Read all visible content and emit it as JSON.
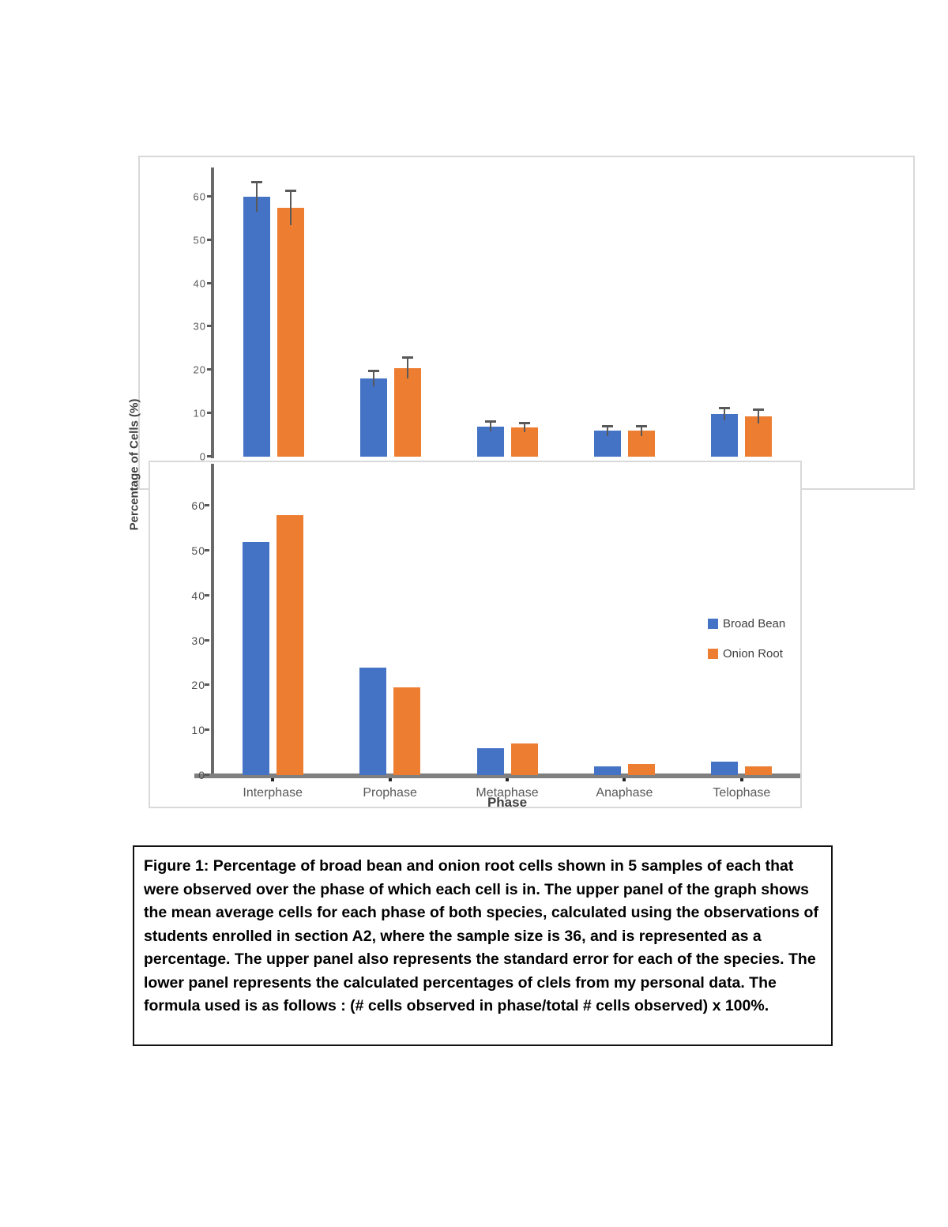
{
  "figure": {
    "y_axis_label": "Percentage of Cells (%)"
  },
  "chart_data": [
    {
      "panel": "upper",
      "type": "bar",
      "title": "",
      "ylabel": "Percentage of Cells (%)",
      "xlabel": "",
      "categories": [
        "Interphase",
        "Prophase",
        "Metaphase",
        "Anaphase",
        "Telophase"
      ],
      "series": [
        {
          "name": "Broad Bean",
          "color": "#4472C4",
          "values": [
            60,
            18,
            7,
            6,
            9.8
          ],
          "errors": [
            3.5,
            1.8,
            1.2,
            1.2,
            1.5
          ]
        },
        {
          "name": "Onion Root",
          "color": "#ED7D31",
          "values": [
            57.5,
            20.5,
            6.8,
            6,
            9.3
          ],
          "errors": [
            4,
            2.5,
            1.1,
            1.2,
            1.7
          ]
        }
      ],
      "y_ticks": [
        0,
        10,
        20,
        30,
        40,
        50,
        60
      ],
      "ymax": 66,
      "ylim": [
        0,
        66
      ],
      "grid": false,
      "error_bars": true,
      "x_axis_line": false,
      "show_x_labels": false,
      "legend": false
    },
    {
      "panel": "lower",
      "type": "bar",
      "title": "",
      "ylabel": "Percentage of Cells (%)",
      "xlabel": "Phase",
      "categories": [
        "Interphase",
        "Prophase",
        "Metaphase",
        "Anaphase",
        "Telophase"
      ],
      "series": [
        {
          "name": "Broad Bean",
          "color": "#4472C4",
          "values": [
            52,
            24,
            6,
            2,
            3
          ]
        },
        {
          "name": "Onion Root",
          "color": "#ED7D31",
          "values": [
            58,
            19.5,
            7,
            2.5,
            2
          ]
        }
      ],
      "y_ticks": [
        0,
        10,
        20,
        30,
        40,
        50,
        60
      ],
      "ymax": 69,
      "ylim": [
        0,
        69
      ],
      "grid": false,
      "error_bars": false,
      "x_axis_line": true,
      "show_x_labels": true,
      "legend": true,
      "legend_position": "right-middle"
    }
  ],
  "caption": {
    "text": "Figure 1: Percentage of broad bean and onion root cells shown in 5 samples of each that were observed over the phase of which each cell is in. The upper panel of the graph shows the mean average cells for each phase of both species, calculated using the observations of students enrolled in section A2, where the sample size is 36, and is represented as a percentage. The upper panel also represents the standard error for each of the species. The lower panel represents the calculated percentages of clels from my personal data. The formula used is as follows : (# cells observed in phase/total # cells observed) x 100%."
  }
}
